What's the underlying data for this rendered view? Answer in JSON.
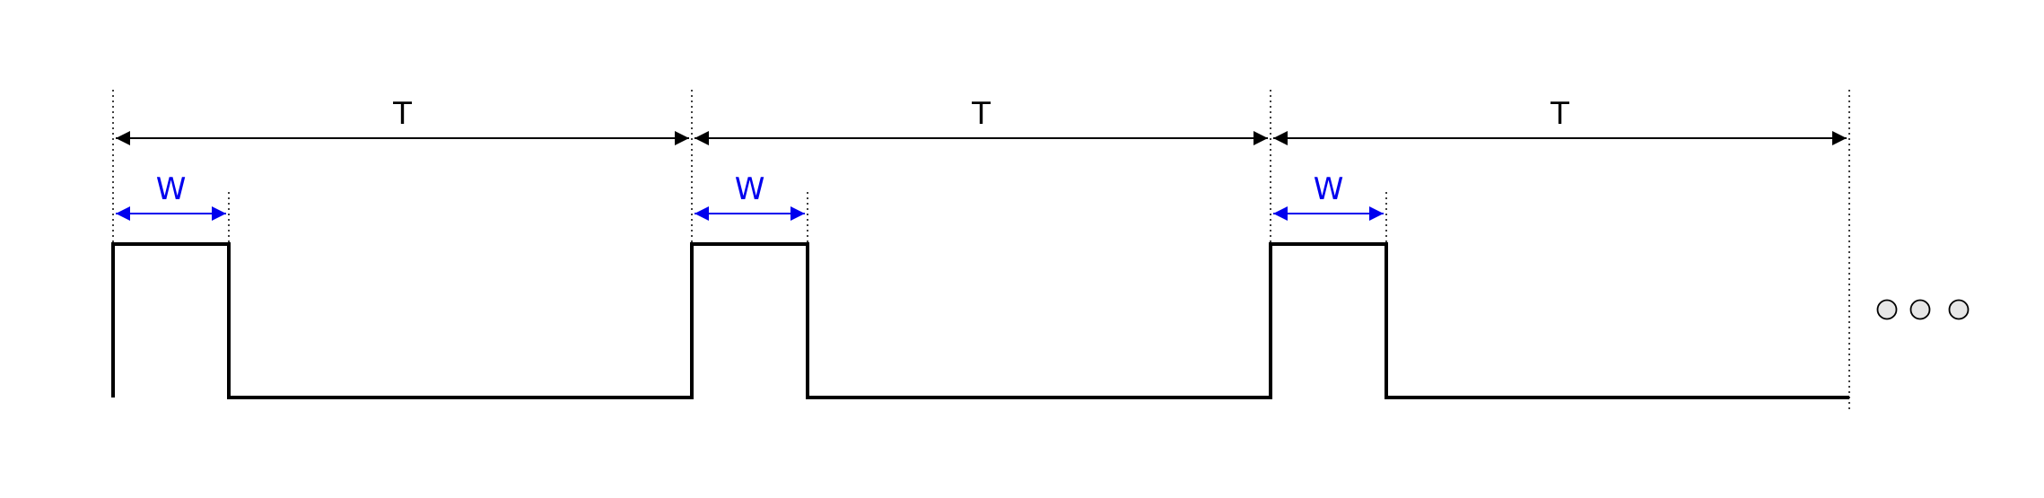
{
  "period_label": "T",
  "width_label": "W",
  "period_count": 3,
  "duty_fraction": 0.2,
  "continuation_symbol": "ellipsis-circles",
  "colors": {
    "signal": "#000000",
    "period_annotation": "#000000",
    "width_annotation": "#0000ee",
    "guide": "#000000",
    "ellipsis_fill": "#e6e6e6"
  }
}
